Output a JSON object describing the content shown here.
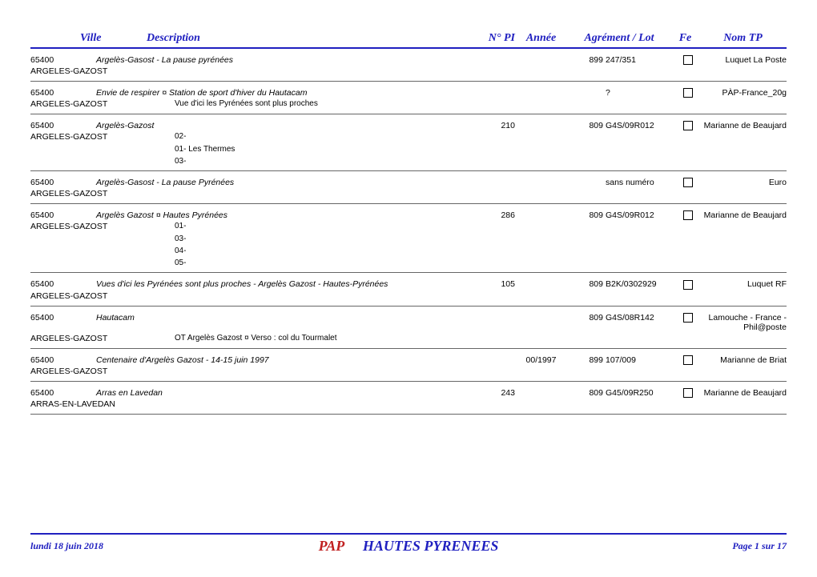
{
  "headers": {
    "ville": "Ville",
    "description": "Description",
    "pi": "N° PI",
    "annee": "Année",
    "agr": "Agrément / Lot",
    "fe": "Fe",
    "nom": "Nom TP"
  },
  "rows": [
    {
      "code": "65400",
      "desc": "Argelès-Gasost - La pause pyrénées",
      "pi": "",
      "annee": "",
      "agrnum": "899",
      "agrtxt": "247/351",
      "nom": "Luquet La Poste",
      "city2": "ARGELES-GAZOST",
      "sub": "",
      "extras": []
    },
    {
      "code": "65400",
      "desc": "Envie de respirer ¤ Station de sport d'hiver du Hautacam",
      "pi": "",
      "annee": "",
      "agrnum": "",
      "agrtxt": "?",
      "nom": "PÀP-France_20g",
      "city2": "ARGELES-GAZOST",
      "sub": "Vue d'ici les Pyrénées sont plus proches",
      "extras": []
    },
    {
      "code": "65400",
      "desc": "Argelès-Gazost",
      "pi": "210",
      "annee": "",
      "agrnum": "809",
      "agrtxt": "G4S/09R012",
      "nom": "Marianne de Beaujard",
      "city2": "ARGELES-GAZOST",
      "sub": "02-",
      "extras": [
        "01- Les Thermes",
        "03-"
      ]
    },
    {
      "code": "65400",
      "desc": "Argelès-Gasost - La pause Pyrénées",
      "pi": "",
      "annee": "",
      "agrnum": "",
      "agrtxt": "sans numéro",
      "nom": "Euro",
      "city2": "ARGELES-GAZOST",
      "sub": "",
      "extras": []
    },
    {
      "code": "65400",
      "desc": "Argelès Gazost ¤ Hautes Pyrénées",
      "pi": "286",
      "annee": "",
      "agrnum": "809",
      "agrtxt": "G4S/09R012",
      "nom": "Marianne de Beaujard",
      "city2": "ARGELES-GAZOST",
      "sub": "01-",
      "extras": [
        "",
        "03-",
        "04-",
        "05-"
      ]
    },
    {
      "code": "65400",
      "desc": "Vues d'ici les Pyrénées sont plus proches - Argelès Gazost - Hautes-Pyrénées",
      "pi": "105",
      "annee": "",
      "agrnum": "809",
      "agrtxt": "B2K/0302929",
      "nom": "Luquet RF",
      "city2": "ARGELES-GAZOST",
      "sub": "",
      "extras": []
    },
    {
      "code": "65400",
      "desc": "Hautacam",
      "pi": "",
      "annee": "",
      "agrnum": "809",
      "agrtxt": "G4S/08R142",
      "nom": "Lamouche - France - Phil@poste",
      "city2": "ARGELES-GAZOST",
      "sub": "OT Argelès Gazost ¤ Verso : col du Tourmalet",
      "extras": []
    },
    {
      "code": "65400",
      "desc": "Centenaire d'Argelès Gazost - 14-15 juin 1997",
      "pi": "",
      "annee": "00/1997",
      "agrnum": "899",
      "agrtxt": "107/009",
      "nom": "Marianne de Briat",
      "city2": "ARGELES-GAZOST",
      "sub": "",
      "extras": []
    },
    {
      "code": "65400",
      "desc": "Arras en Lavedan",
      "pi": "243",
      "annee": "",
      "agrnum": "809",
      "agrtxt": "G45/09R250",
      "nom": "Marianne de Beaujard",
      "city2": "ARRAS-EN-LAVEDAN",
      "sub": "",
      "extras": []
    }
  ],
  "footer": {
    "date": "lundi 18 juin 2018",
    "pap": "PAP",
    "region": "HAUTES PYRENEES",
    "page": "Page 1 sur 17"
  }
}
